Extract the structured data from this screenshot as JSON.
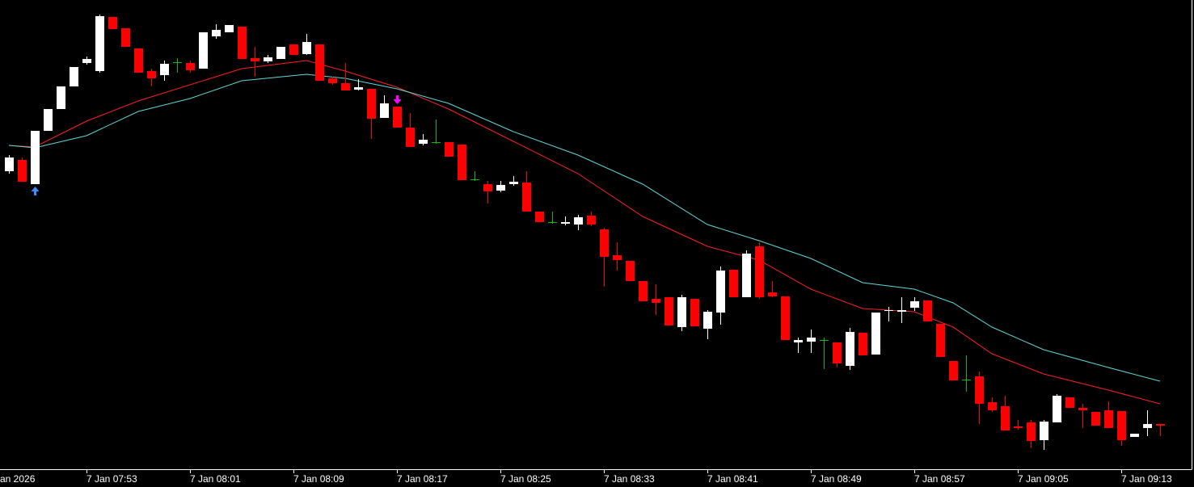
{
  "chart_data": {
    "type": "candlestick",
    "x_axis_start_label": "an 2026",
    "categories": [
      null,
      null,
      null,
      null,
      null,
      null,
      "7 Jan 07:53",
      null,
      null,
      null,
      null,
      null,
      null,
      null,
      "7 Jan 08:01",
      null,
      null,
      null,
      null,
      null,
      null,
      null,
      "7 Jan 08:09",
      null,
      null,
      null,
      null,
      null,
      null,
      null,
      "7 Jan 08:17",
      null,
      null,
      null,
      null,
      null,
      null,
      null,
      "7 Jan 08:25",
      null,
      null,
      null,
      null,
      null,
      null,
      null,
      "7 Jan 08:33",
      null,
      null,
      null,
      null,
      null,
      null,
      null,
      "7 Jan 08:41",
      null,
      null,
      null,
      null,
      null,
      null,
      null,
      "7 Jan 08:49",
      null,
      null,
      null,
      null,
      null,
      null,
      null,
      "7 Jan 08:57",
      null,
      null,
      null,
      null,
      null,
      null,
      null,
      "7 Jan 09:05",
      null,
      null,
      null,
      null,
      null,
      null,
      null,
      "7 Jan 09:13",
      null,
      null,
      null
    ],
    "open": [
      368,
      382,
      352,
      418,
      445,
      473,
      502,
      492,
      559,
      545,
      520,
      492,
      487,
      503,
      502,
      495,
      535,
      540,
      547,
      508,
      504,
      507,
      525,
      513,
      525,
      483,
      477,
      469,
      470,
      434,
      448,
      422,
      402,
      404,
      404,
      401,
      358,
      352,
      344,
      352,
      354,
      318,
      305,
      303,
      302,
      313,
      296,
      264,
      257,
      232,
      210,
      212,
      175,
      210,
      173,
      193,
      246,
      212,
      275,
      218,
      213,
      156,
      157,
      159,
      156,
      127,
      168,
      141,
      195,
      194,
      199,
      208,
      179,
      133,
      110,
      114,
      82,
      77,
      52,
      57,
      35,
      57,
      88,
      75,
      70,
      72,
      71,
      39,
      50,
      55
    ],
    "high": [
      388,
      385,
      418,
      445,
      473,
      497,
      510,
      562,
      559,
      545,
      520,
      495,
      505,
      508,
      505,
      540,
      550,
      549,
      547,
      522,
      512,
      522,
      525,
      538,
      525,
      485,
      502,
      482,
      470,
      462,
      448,
      440,
      414,
      432,
      404,
      401,
      368,
      356,
      356,
      362,
      368,
      318,
      318,
      312,
      314,
      318,
      298,
      280,
      257,
      232,
      228,
      212,
      215,
      210,
      196,
      250,
      246,
      270,
      280,
      232,
      213,
      162,
      172,
      162,
      156,
      174,
      168,
      193,
      200,
      212,
      212,
      208,
      179,
      133,
      140,
      120,
      88,
      90,
      60,
      60,
      60,
      92,
      88,
      80,
      70,
      83,
      71,
      43,
      72,
      55
    ],
    "low": [
      365,
      355,
      352,
      418,
      445,
      473,
      500,
      490,
      544,
      522,
      490,
      473,
      480,
      490,
      490,
      495,
      532,
      540,
      507,
      485,
      502,
      507,
      512,
      512,
      480,
      475,
      468,
      468,
      408,
      434,
      422,
      398,
      400,
      402,
      386,
      357,
      356,
      328,
      342,
      350,
      318,
      305,
      303,
      301,
      295,
      300,
      225,
      245,
      232,
      207,
      190,
      177,
      170,
      176,
      160,
      178,
      212,
      212,
      210,
      212,
      159,
      143,
      143,
      123,
      125,
      122,
      140,
      141,
      182,
      180,
      195,
      182,
      138,
      109,
      95,
      55,
      70,
      47,
      48,
      25,
      23,
      57,
      75,
      50,
      53,
      50,
      28,
      39,
      40,
      40
    ],
    "close": [
      385,
      355,
      418,
      445,
      473,
      497,
      507,
      560,
      544,
      522,
      490,
      483,
      501,
      503,
      493,
      540,
      543,
      549,
      507,
      504,
      509,
      522,
      512,
      528,
      480,
      477,
      468,
      472,
      433,
      452,
      422,
      398,
      407,
      404,
      386,
      357,
      358,
      343,
      351,
      355,
      318,
      305,
      305,
      305,
      311,
      302,
      262,
      258,
      232,
      207,
      205,
      177,
      212,
      176,
      194,
      245,
      212,
      266,
      212,
      213,
      159,
      159,
      162,
      159,
      130,
      169,
      140,
      193,
      196,
      196,
      207,
      182,
      138,
      109,
      110,
      80,
      72,
      47,
      50,
      34,
      58,
      90,
      75,
      72,
      53,
      50,
      35,
      43,
      55,
      53
    ],
    "up_color": "#ffffff",
    "down_color": "#ff0000",
    "doji_color": "#00c000",
    "series": [
      {
        "color": "#ff2020",
        "x": [
          0,
          2,
          6,
          10,
          18,
          23,
          26,
          30,
          34,
          39,
          44,
          49,
          54,
          58,
          62,
          66,
          70,
          73,
          76,
          80,
          85,
          89
        ],
        "values": [
          400,
          398,
          430,
          455,
          495,
          505,
          492,
          472,
          445,
          405,
          365,
          312,
          275,
          258,
          222,
          198,
          194,
          175,
          142,
          117,
          97,
          80
        ]
      },
      {
        "color": "#5fd8d8",
        "x": [
          0,
          2,
          6,
          10,
          14,
          18,
          23,
          26,
          30,
          34,
          39,
          44,
          49,
          54,
          58,
          62,
          66,
          70,
          73,
          76,
          80,
          85,
          89
        ],
        "values": [
          400,
          397,
          412,
          442,
          458,
          480,
          488,
          483,
          470,
          452,
          417,
          388,
          352,
          302,
          282,
          260,
          230,
          222,
          205,
          175,
          147,
          125,
          108
        ]
      }
    ],
    "arrows": [
      {
        "candle": 2,
        "direction": "up",
        "color": "#3c8cff"
      },
      {
        "candle": 30,
        "direction": "down",
        "color": "#ff00ff"
      }
    ],
    "ylim": [
      0,
      580
    ]
  }
}
